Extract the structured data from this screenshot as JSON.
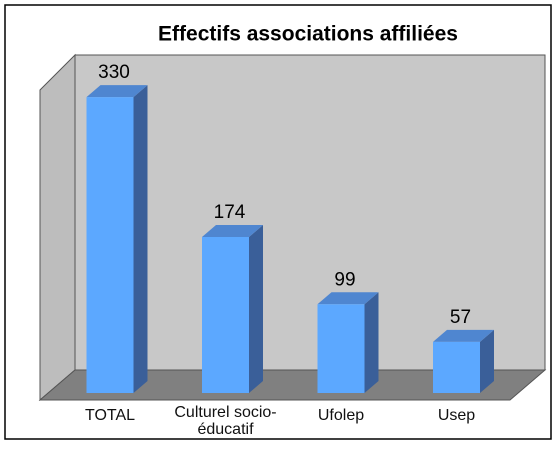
{
  "chart_data": {
    "type": "bar3d",
    "title": "Effectifs associations affiliées",
    "categories": [
      "TOTAL",
      "Culturel socio-éducatif",
      "Ufolep",
      "Usep"
    ],
    "values": [
      330,
      174,
      99,
      57
    ],
    "color": "#5ca8ff",
    "ylim": [
      0,
      338
    ]
  }
}
